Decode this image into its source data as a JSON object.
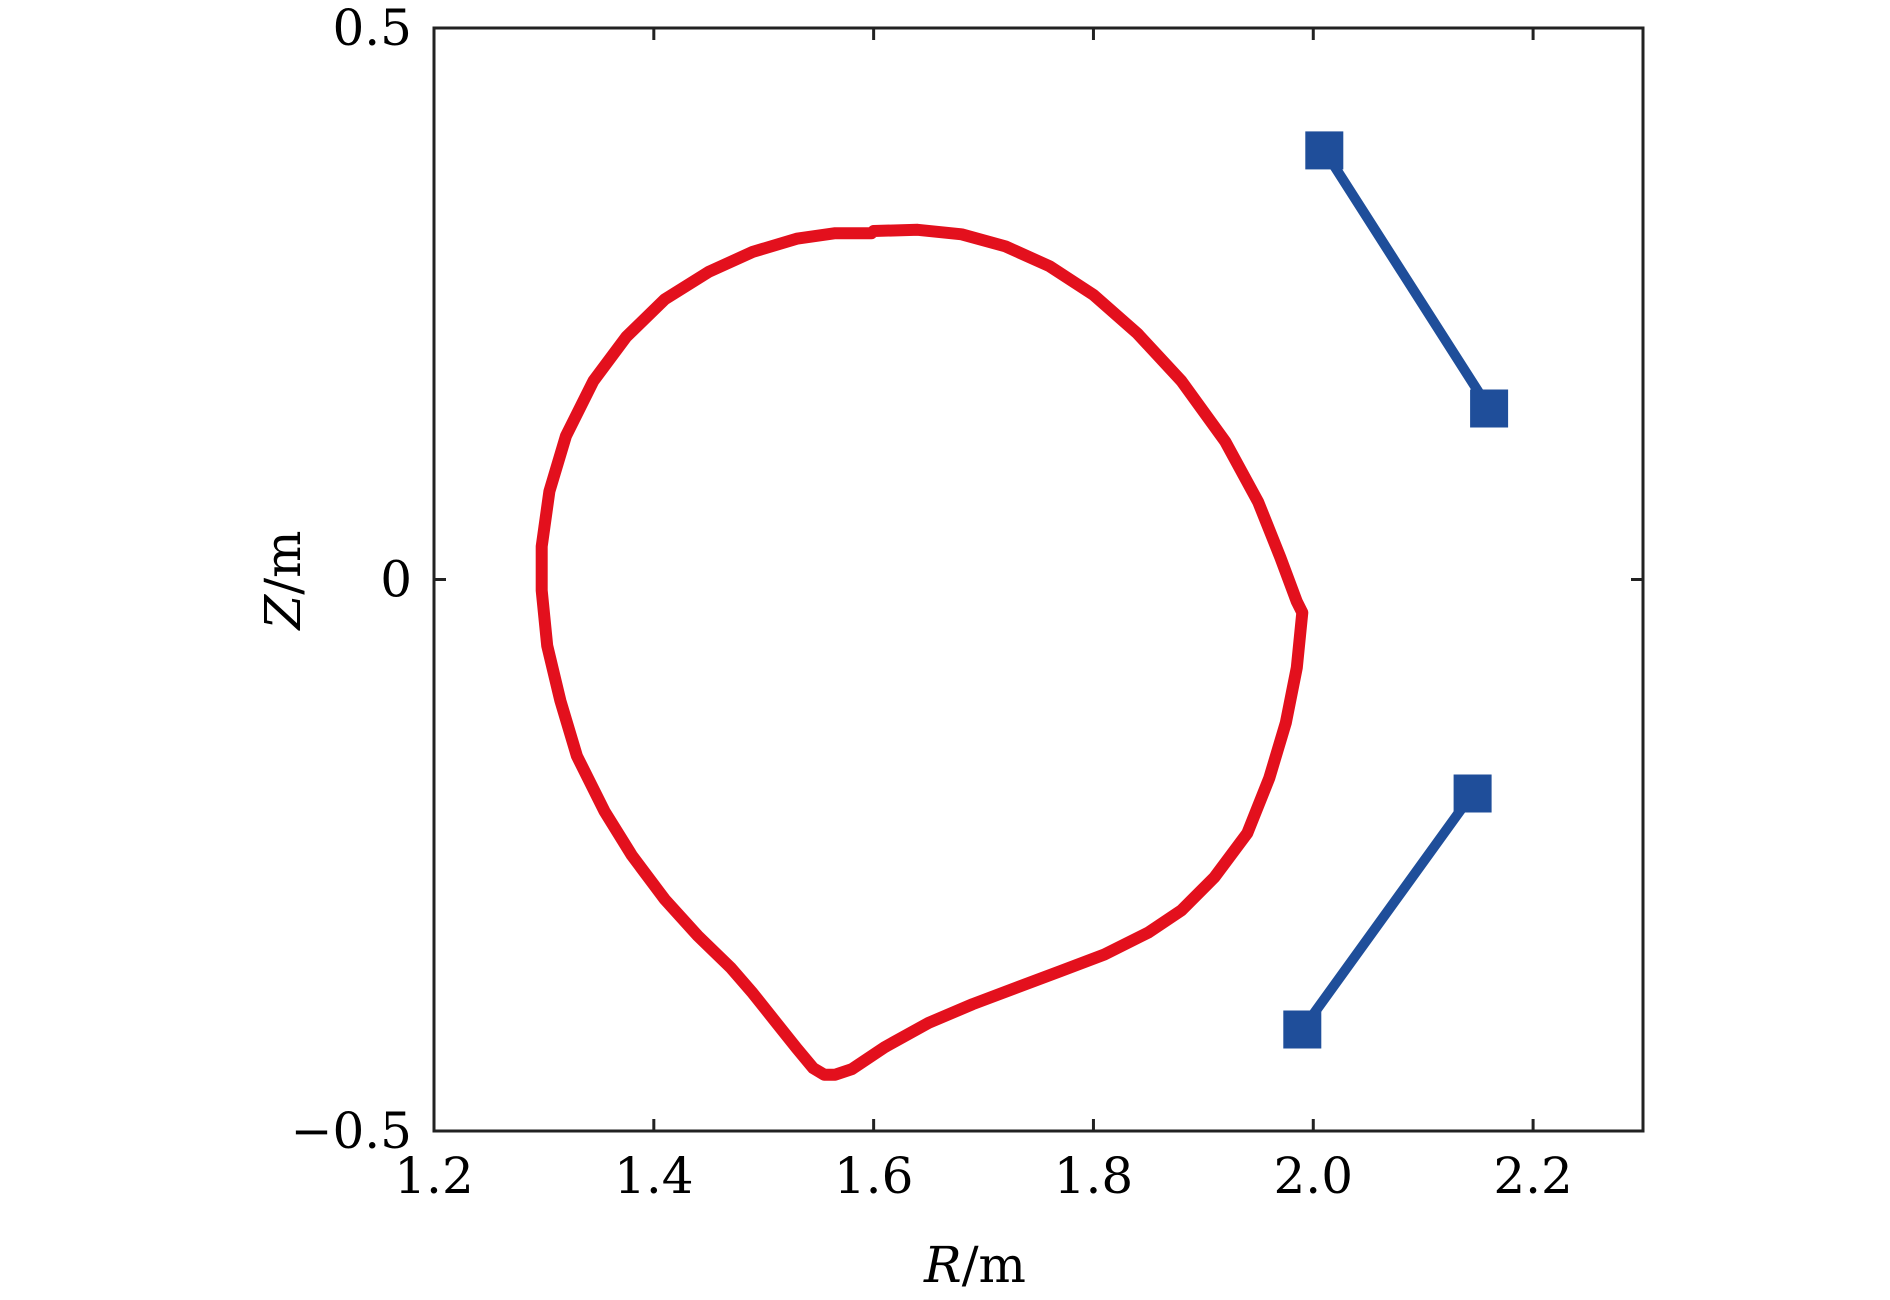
{
  "chart_data": {
    "type": "line",
    "title": "",
    "xlabel": {
      "var": "R",
      "unit": "/m"
    },
    "ylabel": {
      "var": "Z",
      "unit": "/m"
    },
    "xlim": [
      1.2,
      2.3
    ],
    "ylim": [
      -0.5,
      0.5
    ],
    "x_ticks": [
      {
        "value": 1.2,
        "label": "1.2"
      },
      {
        "value": 1.4,
        "label": "1.4"
      },
      {
        "value": 1.6,
        "label": "1.6"
      },
      {
        "value": 1.8,
        "label": "1.8"
      },
      {
        "value": 2.0,
        "label": "2.0"
      },
      {
        "value": 2.2,
        "label": "2.2"
      }
    ],
    "y_ticks": [
      {
        "value": 0.5,
        "label": "0.5"
      },
      {
        "value": 0,
        "label": "0"
      },
      {
        "value": -0.5,
        "label": "−0.5"
      }
    ],
    "grid": false,
    "legend": "none",
    "series": [
      {
        "color": "#e3101d",
        "style": "line",
        "x": [
          1.598,
          1.6,
          1.64,
          1.68,
          1.72,
          1.76,
          1.8,
          1.84,
          1.88,
          1.92,
          1.95,
          1.97,
          1.985,
          1.99,
          1.985,
          1.975,
          1.96,
          1.94,
          1.91,
          1.88,
          1.85,
          1.81,
          1.77,
          1.73,
          1.69,
          1.65,
          1.61,
          1.58,
          1.565,
          1.555,
          1.545,
          1.53,
          1.51,
          1.49,
          1.47,
          1.44,
          1.41,
          1.38,
          1.355,
          1.33,
          1.315,
          1.303,
          1.298,
          1.298,
          1.305,
          1.32,
          1.345,
          1.375,
          1.41,
          1.45,
          1.49,
          1.53,
          1.565,
          1.598
        ],
        "y": [
          0.314,
          0.316,
          0.317,
          0.313,
          0.302,
          0.284,
          0.258,
          0.223,
          0.18,
          0.125,
          0.07,
          0.02,
          -0.02,
          -0.03,
          -0.08,
          -0.13,
          -0.18,
          -0.23,
          -0.27,
          -0.3,
          -0.32,
          -0.34,
          -0.355,
          -0.37,
          -0.385,
          -0.402,
          -0.424,
          -0.444,
          -0.449,
          -0.449,
          -0.443,
          -0.425,
          -0.4,
          -0.375,
          -0.352,
          -0.323,
          -0.29,
          -0.25,
          -0.21,
          -0.16,
          -0.11,
          -0.06,
          -0.01,
          0.03,
          0.08,
          0.13,
          0.18,
          0.22,
          0.254,
          0.279,
          0.297,
          0.309,
          0.314,
          0.314
        ]
      },
      {
        "color": "#1f4e9a",
        "style": "line-square-markers",
        "x": [
          2.01,
          2.16
        ],
        "y": [
          0.389,
          0.155
        ]
      },
      {
        "color": "#1f4e9a",
        "style": "line-square-markers",
        "x": [
          2.145,
          1.99
        ],
        "y": [
          -0.194,
          -0.408
        ]
      }
    ]
  }
}
